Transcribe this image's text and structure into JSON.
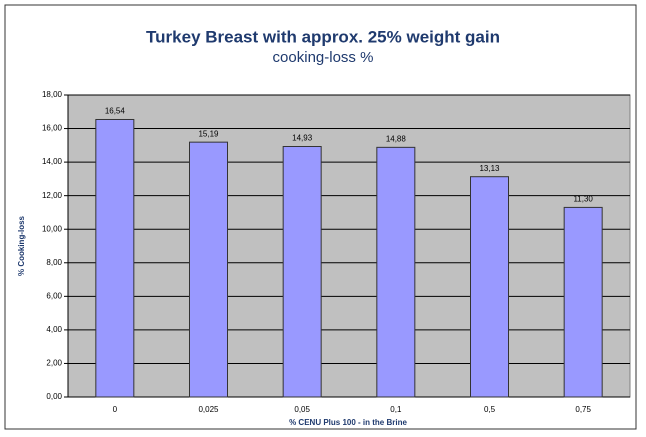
{
  "chart_data": {
    "type": "bar",
    "title": "Turkey Breast with approx. 25% weight gain",
    "subtitle": "cooking-loss %",
    "x_label": "% CENU Plus 100 - in the Brine",
    "y_label": "% Cooking-loss",
    "categories": [
      "0",
      "0,025",
      "0,05",
      "0,1",
      "0,5",
      "0,75"
    ],
    "values": [
      16.54,
      15.19,
      14.93,
      14.88,
      13.13,
      11.3
    ],
    "value_labels": [
      "16,54",
      "15,19",
      "14,93",
      "14,88",
      "13,13",
      "11,30"
    ],
    "color": "#9999ff",
    "ylim": [
      0,
      18
    ],
    "yticks": [
      {
        "value": 0,
        "label": "0,00"
      },
      {
        "value": 2,
        "label": "2,00"
      },
      {
        "value": 4,
        "label": "4,00"
      },
      {
        "value": 6,
        "label": "6,00"
      },
      {
        "value": 8,
        "label": "8,00"
      },
      {
        "value": 10,
        "label": "10,00"
      },
      {
        "value": 12,
        "label": "12,00"
      },
      {
        "value": 14,
        "label": "14,00"
      },
      {
        "value": 16,
        "label": "16,00"
      },
      {
        "value": 18,
        "label": "18,00"
      }
    ],
    "grid": true
  }
}
